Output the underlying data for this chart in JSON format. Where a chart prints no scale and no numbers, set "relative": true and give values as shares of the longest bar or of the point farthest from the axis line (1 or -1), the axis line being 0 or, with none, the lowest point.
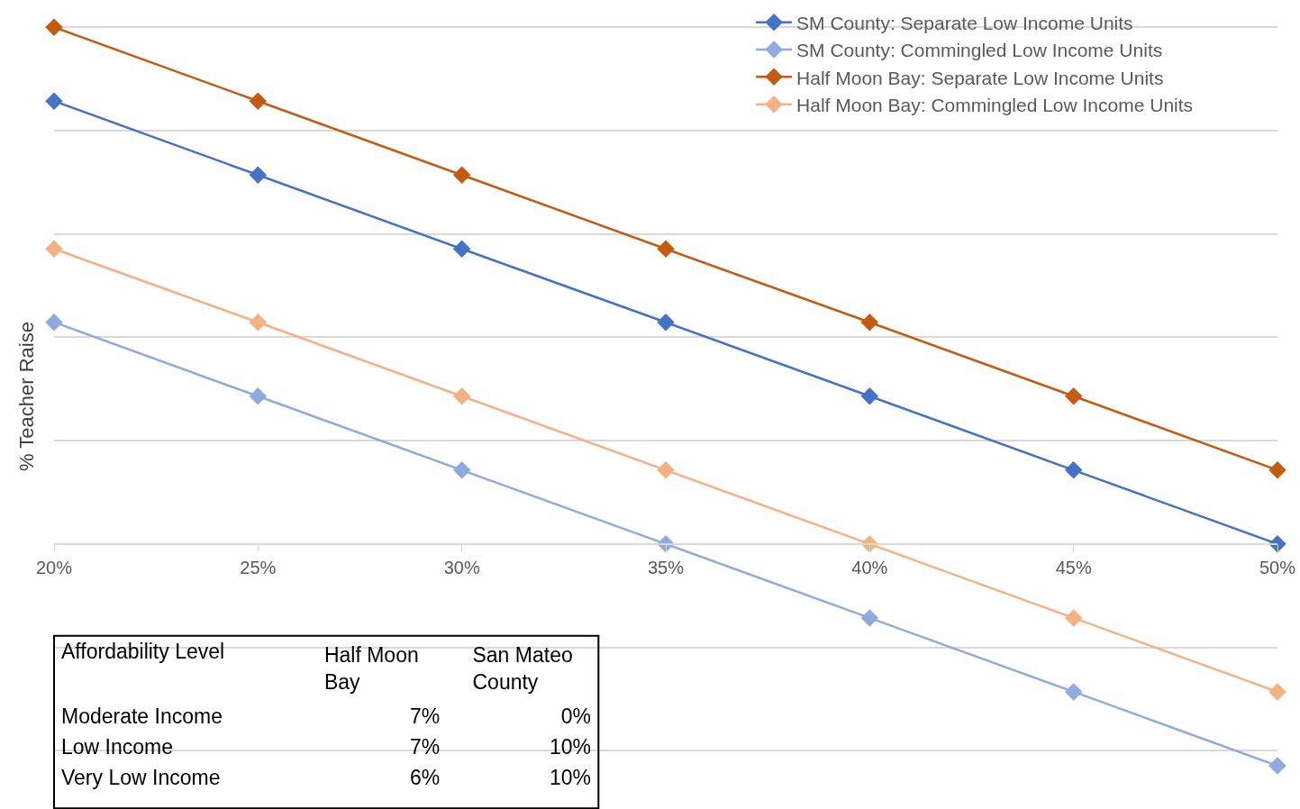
{
  "chart_data": [
    {
      "type": "line",
      "ylabel": "% Teacher Raise",
      "relative": true,
      "categories": [
        "20%",
        "25%",
        "30%",
        "35%",
        "40%",
        "45%",
        "50%"
      ],
      "marker": "diamond",
      "line_style": "solid",
      "grid": "y",
      "legend": "top right",
      "series": [
        {
          "name": "SM County: Separate Low Income Units",
          "color": "#4472c4",
          "values": [
            0.857,
            0.714,
            0.571,
            0.429,
            0.286,
            0.143,
            0
          ]
        },
        {
          "name": "SM County: Commingled Low Income Units",
          "color": "#8faadc",
          "values": [
            0.429,
            0.286,
            0.143,
            0,
            -0.143,
            -0.286,
            -0.429
          ]
        },
        {
          "name": "Half Moon Bay: Separate Low Income Units",
          "color": "#c55a11",
          "values": [
            1,
            0.857,
            0.714,
            0.571,
            0.429,
            0.286,
            0.143
          ]
        },
        {
          "name": "Half Moon Bay: Commingled Low Income Units",
          "color": "#f4b183",
          "values": [
            0.571,
            0.429,
            0.286,
            0.143,
            0,
            -0.143,
            -0.286
          ]
        }
      ]
    },
    {
      "type": "other",
      "categories": [
        "Affordability Level",
        "Half Moon Bay",
        "San Mateo County"
      ],
      "y_categories": [
        "Moderate Income",
        "Low Income",
        "Very Low Income"
      ],
      "cell_labels": [
        [
          "7%",
          "0%"
        ],
        [
          "7%",
          "10%"
        ],
        [
          "6%",
          "10%"
        ]
      ]
    }
  ]
}
